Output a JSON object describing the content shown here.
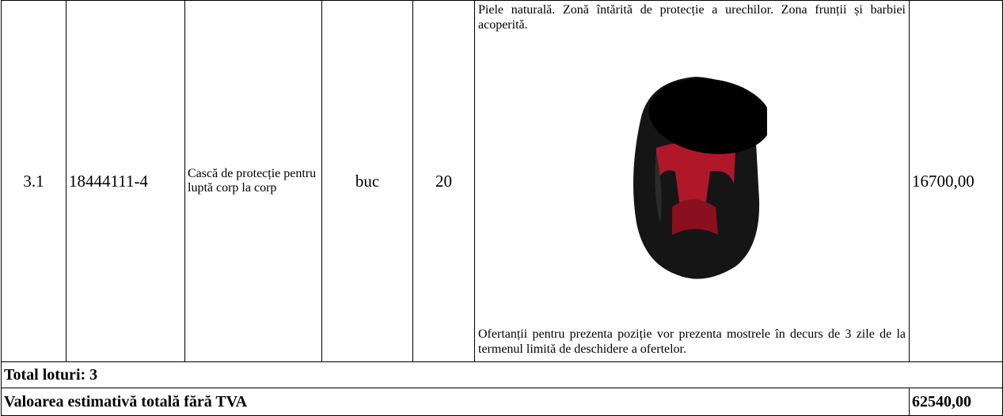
{
  "table": {
    "rows": [
      [
        "3.1",
        "18444111-4",
        "Cască de protecție pentru luptă corp la corp",
        "buc",
        "20",
        {
          "description": "Piele naturală. Zonă întărită de protecție a urechilor. Zona frunții și barbiei acoperită.",
          "note": "Ofertanții pentru prezenta poziție vor prezenta mostrele în decurs de 3 zile de la termenul limită de deschidere a ofertelor."
        },
        "16700,00"
      ]
    ],
    "total_lots": "Total loturi: 3",
    "total_label": "Valoarea estimativă totală fără TVA",
    "total_value": "62540,00"
  }
}
